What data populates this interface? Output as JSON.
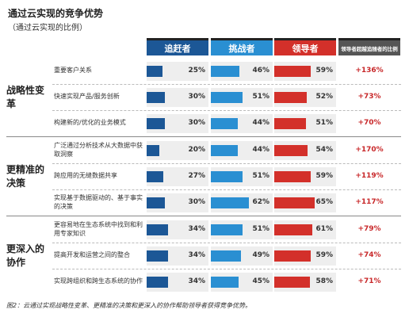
{
  "title": "通过云实现的竞争优势",
  "subtitle": "（通过云实现的比例）",
  "columns": [
    {
      "name": "追赶者",
      "color": "#1c5796"
    },
    {
      "name": "挑战者",
      "color": "#2a8fd2"
    },
    {
      "name": "领导者",
      "color": "#d3302a"
    }
  ],
  "advantage_header": "领导者超越追随者的比例",
  "groups": [
    {
      "name": "战略性变革",
      "rows": [
        {
          "label": "重要客户关系",
          "values": [
            25,
            46,
            59
          ],
          "value_labels": [
            "25%",
            "46%",
            "59%"
          ],
          "advantage": "+136%"
        },
        {
          "label": "快速实现产品/服务创新",
          "values": [
            30,
            51,
            52
          ],
          "value_labels": [
            "30%",
            "51%",
            "52%"
          ],
          "advantage": "+73%"
        },
        {
          "label": "构建新的/优化的业务模式",
          "values": [
            30,
            44,
            51
          ],
          "value_labels": [
            "30%",
            "44%",
            "51%"
          ],
          "advantage": "+70%"
        }
      ]
    },
    {
      "name": "更精准的决策",
      "rows": [
        {
          "label": "广泛通过分析技术从大数据中获取洞察",
          "values": [
            20,
            44,
            54
          ],
          "value_labels": [
            "20%",
            "44%",
            "54%"
          ],
          "advantage": "+170%"
        },
        {
          "label": "跨应用的无缝数据共享",
          "values": [
            27,
            51,
            59
          ],
          "value_labels": [
            "27%",
            "51%",
            "59%"
          ],
          "advantage": "+119%"
        },
        {
          "label": "实现基于数据驱动的、基于事实的决策",
          "values": [
            30,
            62,
            65
          ],
          "value_labels": [
            "30%",
            "62%",
            "65%"
          ],
          "advantage": "+117%"
        }
      ]
    },
    {
      "name": "更深入的协作",
      "rows": [
        {
          "label": "更容易地在生态系统中找到和利用专家知识",
          "values": [
            34,
            51,
            61
          ],
          "value_labels": [
            "34%",
            "51%",
            "61%"
          ],
          "advantage": "+79%"
        },
        {
          "label": "提高开发和运营之间的整合",
          "values": [
            34,
            49,
            59
          ],
          "value_labels": [
            "34%",
            "49%",
            "59%"
          ],
          "advantage": "+74%"
        },
        {
          "label": "实现跨组织和跨生态系统的协作",
          "values": [
            34,
            45,
            58
          ],
          "value_labels": [
            "34%",
            "45%",
            "58%"
          ],
          "advantage": "+71%"
        }
      ]
    }
  ],
  "caption": "图2：云通过实现战略性变革、更精准的决策和更深入的协作帮助领导者获得竞争优势。"
}
